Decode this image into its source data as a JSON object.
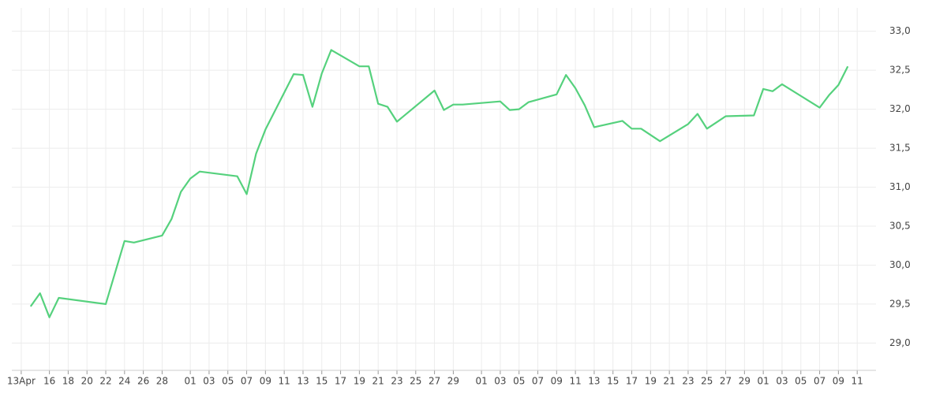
{
  "chart_data": {
    "type": "line",
    "x": [
      "04-14",
      "04-15",
      "04-16",
      "04-17",
      "04-22",
      "04-24",
      "04-25",
      "04-28",
      "04-29",
      "04-30",
      "05-01",
      "05-02",
      "05-06",
      "05-07",
      "05-08",
      "05-09",
      "05-12",
      "05-13",
      "05-14",
      "05-15",
      "05-16",
      "05-19",
      "05-20",
      "05-21",
      "05-22",
      "05-23",
      "05-27",
      "05-28",
      "05-29",
      "05-30",
      "06-03",
      "06-04",
      "06-05",
      "06-06",
      "06-09",
      "06-10",
      "06-11",
      "06-12",
      "06-13",
      "06-16",
      "06-17",
      "06-18",
      "06-20",
      "06-23",
      "06-24",
      "06-25",
      "06-26",
      "06-27",
      "06-30",
      "07-01",
      "07-02",
      "07-03",
      "07-07",
      "07-08",
      "07-09",
      "07-10"
    ],
    "series": [
      {
        "color": "#55d17d",
        "values": [
          29.47,
          29.64,
          29.33,
          29.58,
          29.5,
          30.31,
          30.29,
          30.38,
          30.59,
          30.94,
          31.11,
          31.2,
          31.14,
          30.91,
          31.43,
          31.74,
          32.45,
          32.44,
          32.03,
          32.46,
          32.76,
          32.55,
          32.55,
          32.07,
          32.03,
          31.84,
          32.24,
          31.99,
          32.06,
          32.06,
          32.1,
          31.99,
          32.0,
          32.09,
          32.19,
          32.44,
          32.27,
          32.05,
          31.77,
          31.85,
          31.75,
          31.75,
          31.59,
          31.81,
          31.94,
          31.75,
          31.83,
          31.91,
          31.92,
          32.26,
          32.23,
          32.32,
          32.02,
          32.18,
          32.31,
          32.55
        ]
      }
    ],
    "xlim": [
      "04-12",
      "07-13"
    ],
    "xticks": [
      {
        "value": "04-13",
        "label": "13Apr"
      },
      {
        "value": "04-16",
        "label": "16"
      },
      {
        "value": "04-18",
        "label": "18"
      },
      {
        "value": "04-20",
        "label": "20"
      },
      {
        "value": "04-22",
        "label": "22"
      },
      {
        "value": "04-24",
        "label": "24"
      },
      {
        "value": "04-26",
        "label": "26"
      },
      {
        "value": "04-28",
        "label": "28"
      },
      {
        "value": "05-01",
        "label": "01"
      },
      {
        "value": "05-03",
        "label": "03"
      },
      {
        "value": "05-05",
        "label": "05"
      },
      {
        "value": "05-07",
        "label": "07"
      },
      {
        "value": "05-09",
        "label": "09"
      },
      {
        "value": "05-11",
        "label": "11"
      },
      {
        "value": "05-13",
        "label": "13"
      },
      {
        "value": "05-15",
        "label": "15"
      },
      {
        "value": "05-17",
        "label": "17"
      },
      {
        "value": "05-19",
        "label": "19"
      },
      {
        "value": "05-21",
        "label": "21"
      },
      {
        "value": "05-23",
        "label": "23"
      },
      {
        "value": "05-25",
        "label": "25"
      },
      {
        "value": "05-27",
        "label": "27"
      },
      {
        "value": "05-29",
        "label": "29"
      },
      {
        "value": "06-01",
        "label": "01"
      },
      {
        "value": "06-03",
        "label": "03"
      },
      {
        "value": "06-05",
        "label": "05"
      },
      {
        "value": "06-07",
        "label": "07"
      },
      {
        "value": "06-09",
        "label": "09"
      },
      {
        "value": "06-11",
        "label": "11"
      },
      {
        "value": "06-13",
        "label": "13"
      },
      {
        "value": "06-15",
        "label": "15"
      },
      {
        "value": "06-17",
        "label": "17"
      },
      {
        "value": "06-19",
        "label": "19"
      },
      {
        "value": "06-21",
        "label": "21"
      },
      {
        "value": "06-23",
        "label": "23"
      },
      {
        "value": "06-25",
        "label": "25"
      },
      {
        "value": "06-27",
        "label": "27"
      },
      {
        "value": "06-29",
        "label": "29"
      },
      {
        "value": "07-01",
        "label": "01"
      },
      {
        "value": "07-03",
        "label": "03"
      },
      {
        "value": "07-05",
        "label": "05"
      },
      {
        "value": "07-07",
        "label": "07"
      },
      {
        "value": "07-09",
        "label": "09"
      },
      {
        "value": "07-11",
        "label": "11"
      }
    ],
    "ylim": [
      28.65,
      33.3
    ],
    "yticks": [
      {
        "value": 29,
        "label": "29,0"
      },
      {
        "value": 29.5,
        "label": "29,5"
      },
      {
        "value": 30,
        "label": "30,0"
      },
      {
        "value": 30.5,
        "label": "30,5"
      },
      {
        "value": 31,
        "label": "31,0"
      },
      {
        "value": 31.5,
        "label": "31,5"
      },
      {
        "value": 32,
        "label": "32,0"
      },
      {
        "value": 32.5,
        "label": "32,5"
      },
      {
        "value": 33,
        "label": "33,0"
      }
    ],
    "grid": true
  }
}
